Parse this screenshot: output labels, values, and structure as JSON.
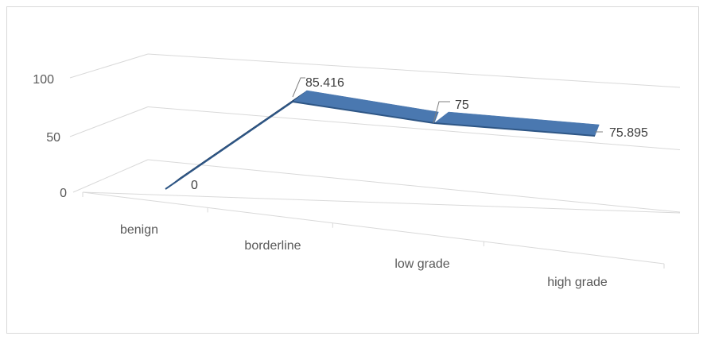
{
  "chart_data": {
    "type": "line",
    "style": "3d-line-ribbon",
    "title": "",
    "xlabel": "",
    "ylabel": "",
    "categories": [
      "benign",
      "borderline",
      "low grade",
      "high grade"
    ],
    "series": [
      {
        "values": [
          0,
          85.416,
          75,
          75.895
        ]
      }
    ],
    "data_labels": [
      "0",
      "85.416",
      "75",
      "75.895"
    ],
    "y_ticks": [
      "0",
      "50",
      "100"
    ],
    "ylim": [
      0,
      100
    ],
    "grid": true,
    "legend": "none",
    "colors": {
      "ribbon_top": "#4a78b0",
      "ribbon_side": "#1f3d63",
      "grid": "#d9d9d9",
      "axis_text": "#595959"
    }
  }
}
